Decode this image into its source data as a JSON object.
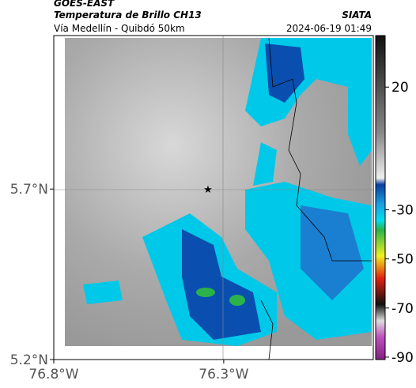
{
  "header": {
    "agency": "GOES-EAST",
    "product": "Temperatura de Brillo CH13",
    "route": "Vía Medellín - Quibdó 50km",
    "source": "SIATA",
    "datetime": "2024-06-19 01:49"
  },
  "map": {
    "lat_range": [
      5.2,
      6.15
    ],
    "lon_range": [
      -76.8,
      -75.86
    ],
    "lat_ticks": [
      {
        "value": 5.7,
        "label": "5.7°N"
      },
      {
        "value": 5.2,
        "label": "5.2°N"
      }
    ],
    "lon_ticks": [
      {
        "value": -76.8,
        "label": "76.8°W"
      },
      {
        "value": -76.3,
        "label": "76.3°W"
      }
    ]
  },
  "colorbar": {
    "range": [
      -91,
      41
    ],
    "ticks": [
      20,
      -30,
      -50,
      -70,
      -90
    ]
  }
}
